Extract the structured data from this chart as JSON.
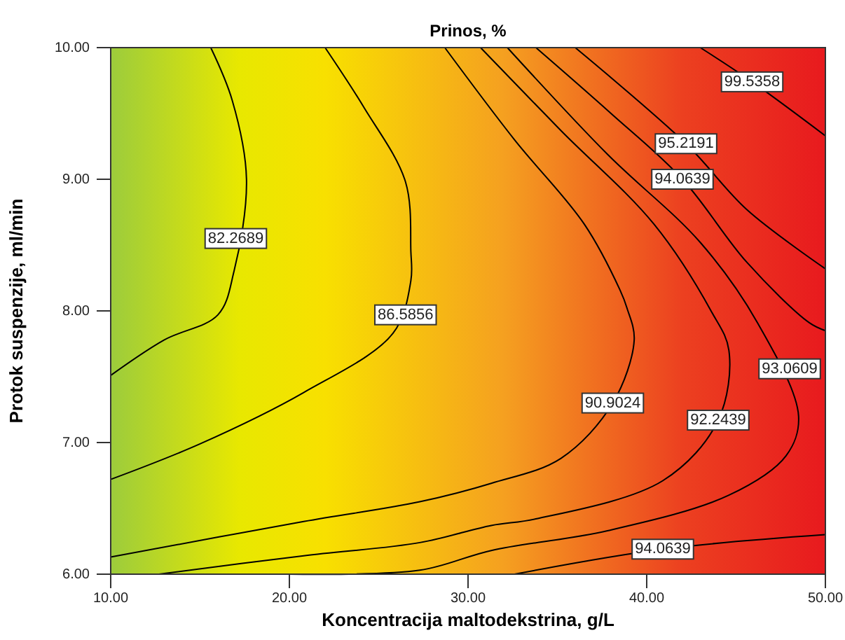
{
  "chart_data": {
    "type": "line",
    "title": "Prinos, %",
    "xlabel": "Koncentracija maltodekstrina, g/L",
    "ylabel": "Protok suspenzije, ml/min",
    "xlim": [
      10,
      50
    ],
    "xticks": [
      {
        "value": 10,
        "label": "10.00"
      },
      {
        "value": 20,
        "label": "20.00"
      },
      {
        "value": 30,
        "label": "30.00"
      },
      {
        "value": 40,
        "label": "40.00"
      },
      {
        "value": 50,
        "label": "50.00"
      }
    ],
    "ylim": [
      6,
      10
    ],
    "yticks": [
      {
        "value": 6,
        "label": "6.00"
      },
      {
        "value": 7,
        "label": "7.00"
      },
      {
        "value": 8,
        "label": "8.00"
      },
      {
        "value": 9,
        "label": "9.00"
      },
      {
        "value": 10,
        "label": "10.00"
      }
    ],
    "grid": false,
    "marker": "none",
    "line_style": "solid",
    "series": [
      {
        "color": "#000000",
        "x": [
          10,
          13.0,
          16.0,
          16.9,
          17.6,
          16.8,
          15.6
        ],
        "values": [
          7.51,
          7.78,
          7.97,
          8.3,
          9.0,
          9.6,
          10
        ]
      },
      {
        "color": "#000000",
        "x": [
          10,
          15.0,
          20.8,
          25.8,
          26.8,
          26.8,
          26.5,
          24.2,
          22.0
        ],
        "values": [
          6.72,
          6.99,
          7.38,
          7.83,
          8.23,
          8.45,
          8.98,
          9.54,
          10
        ]
      },
      {
        "color": "#000000",
        "x": [
          10,
          20.8,
          27.3,
          31.3,
          35.2,
          38.1,
          39.3,
          38.9,
          38.5,
          36.5,
          32.6,
          28.7
        ],
        "values": [
          6.13,
          6.4,
          6.55,
          6.69,
          6.88,
          7.3,
          7.78,
          8.02,
          8.16,
          8.66,
          9.3,
          10
        ]
      },
      {
        "color": "#000000",
        "x": [
          12.7,
          20.8,
          27.3,
          31.3,
          33.8,
          40.9,
          44.0,
          44.6,
          43.6,
          40.4,
          35.2,
          30.7
        ],
        "values": [
          6,
          6.14,
          6.24,
          6.37,
          6.42,
          6.71,
          7.17,
          7.7,
          8.0,
          8.66,
          9.37,
          10
        ]
      },
      {
        "color": "#000000",
        "x": [
          20,
          27.3,
          31.3,
          37.8,
          44.6,
          47.8,
          48.5,
          46.2,
          43.0,
          37.8,
          32.2
        ],
        "values": [
          6,
          6.03,
          6.18,
          6.33,
          6.6,
          6.9,
          7.2,
          7.91,
          8.52,
          9.19,
          10
        ]
      },
      {
        "color": "#000000",
        "x": [
          33.8,
          38,
          42,
          45.6,
          49.1,
          50
        ],
        "values": [
          10,
          9.5,
          9.0,
          8.37,
          7.91,
          7.85
        ]
      },
      {
        "color": "#000000",
        "x": [
          32.6,
          40.9,
          50
        ],
        "values": [
          6,
          6.19,
          6.3
        ]
      },
      {
        "color": "#000000",
        "x": [
          36,
          42.2,
          45.6,
          50
        ],
        "values": [
          10,
          9.27,
          8.77,
          8.32
        ]
      },
      {
        "color": "#000000",
        "x": [
          43,
          45.9,
          50
        ],
        "values": [
          10,
          9.74,
          9.33
        ]
      }
    ],
    "annotations": [
      {
        "text": "82.2689",
        "x": 17.0,
        "y": 8.55
      },
      {
        "text": "86.5856",
        "x": 26.5,
        "y": 7.97
      },
      {
        "text": "90.9024",
        "x": 38.1,
        "y": 7.3
      },
      {
        "text": "92.2439",
        "x": 44.0,
        "y": 7.17
      },
      {
        "text": "93.0609",
        "x": 48.0,
        "y": 7.56
      },
      {
        "text": "94.0639",
        "x": 42.0,
        "y": 9.0
      },
      {
        "text": "95.2191",
        "x": 42.2,
        "y": 9.27
      },
      {
        "text": "99.5358",
        "x": 45.9,
        "y": 9.74
      },
      {
        "text": "94.0639",
        "x": 40.9,
        "y": 6.19
      }
    ]
  }
}
